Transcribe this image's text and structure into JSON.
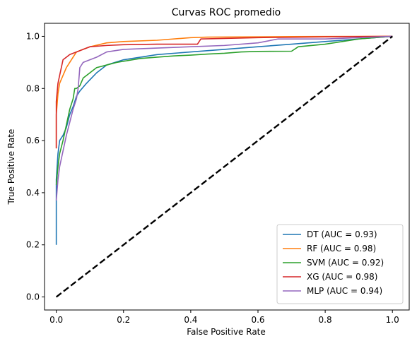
{
  "chart_data": {
    "type": "line",
    "title": "Curvas ROC promedio",
    "xlabel": "False Positive Rate",
    "ylabel": "True Positive Rate",
    "xlim": [
      -0.035,
      1.05
    ],
    "ylim": [
      -0.05,
      1.05
    ],
    "xticks": [
      0.0,
      0.2,
      0.4,
      0.6,
      0.8,
      1.0
    ],
    "yticks": [
      0.0,
      0.2,
      0.4,
      0.6,
      0.8,
      1.0
    ],
    "xtick_labels": [
      "0.0",
      "0.2",
      "0.4",
      "0.6",
      "0.8",
      "1.0"
    ],
    "ytick_labels": [
      "0.0",
      "0.2",
      "0.4",
      "0.6",
      "0.8",
      "1.0"
    ],
    "grid": false,
    "legend_position": "lower-right",
    "series": [
      {
        "name": "DT (AUC = 0.93)",
        "color": "#1f77b4",
        "x": [
          0,
          0,
          0.005,
          0.01,
          0.02,
          0.03,
          0.04,
          0.05,
          0.06,
          0.07,
          0.09,
          0.12,
          0.15,
          0.2,
          0.3,
          0.4,
          0.5,
          0.6,
          0.7,
          0.8,
          0.9,
          1.0
        ],
        "y": [
          0.2,
          0.45,
          0.55,
          0.6,
          0.62,
          0.65,
          0.7,
          0.73,
          0.77,
          0.79,
          0.82,
          0.86,
          0.89,
          0.91,
          0.93,
          0.94,
          0.95,
          0.96,
          0.97,
          0.98,
          0.99,
          1.0
        ]
      },
      {
        "name": "RF (AUC = 0.98)",
        "color": "#ff7f0e",
        "x": [
          0,
          0,
          0.005,
          0.01,
          0.02,
          0.03,
          0.04,
          0.05,
          0.06,
          0.08,
          0.1,
          0.15,
          0.2,
          0.3,
          0.4,
          0.45,
          0.6,
          0.7,
          1.0
        ],
        "y": [
          0.57,
          0.7,
          0.78,
          0.82,
          0.85,
          0.88,
          0.9,
          0.92,
          0.94,
          0.95,
          0.96,
          0.975,
          0.98,
          0.985,
          0.995,
          0.997,
          0.998,
          0.999,
          1.0
        ]
      },
      {
        "name": "SVM (AUC = 0.92)",
        "color": "#2ca02c",
        "x": [
          0,
          0.005,
          0.01,
          0.02,
          0.03,
          0.04,
          0.05,
          0.055,
          0.06,
          0.07,
          0.08,
          0.1,
          0.12,
          0.15,
          0.18,
          0.25,
          0.3,
          0.35,
          0.4,
          0.45,
          0.5,
          0.55,
          0.6,
          0.7,
          0.72,
          0.8,
          0.9,
          1.0
        ],
        "y": [
          0.43,
          0.5,
          0.55,
          0.6,
          0.66,
          0.72,
          0.76,
          0.8,
          0.8,
          0.81,
          0.84,
          0.86,
          0.88,
          0.89,
          0.9,
          0.915,
          0.92,
          0.925,
          0.928,
          0.932,
          0.935,
          0.94,
          0.942,
          0.943,
          0.96,
          0.97,
          0.99,
          1.0
        ]
      },
      {
        "name": "XG (AUC = 0.98)",
        "color": "#d62728",
        "x": [
          0,
          0,
          0.005,
          0.01,
          0.02,
          0.03,
          0.04,
          0.06,
          0.08,
          0.1,
          0.15,
          0.2,
          0.3,
          0.42,
          0.43,
          0.6,
          0.8,
          1.0
        ],
        "y": [
          0.57,
          0.75,
          0.82,
          0.85,
          0.91,
          0.92,
          0.93,
          0.94,
          0.95,
          0.96,
          0.965,
          0.968,
          0.97,
          0.97,
          0.99,
          0.995,
          0.998,
          1.0
        ]
      },
      {
        "name": "MLP (AUC = 0.94)",
        "color": "#9467bd",
        "x": [
          0,
          0.005,
          0.01,
          0.02,
          0.03,
          0.04,
          0.05,
          0.06,
          0.065,
          0.07,
          0.08,
          0.1,
          0.12,
          0.15,
          0.2,
          0.3,
          0.4,
          0.5,
          0.6,
          0.66,
          0.8,
          0.9,
          1.0
        ],
        "y": [
          0.37,
          0.45,
          0.5,
          0.56,
          0.62,
          0.67,
          0.72,
          0.76,
          0.8,
          0.88,
          0.9,
          0.91,
          0.92,
          0.94,
          0.95,
          0.955,
          0.96,
          0.965,
          0.975,
          0.99,
          0.99,
          0.995,
          1.0
        ]
      }
    ],
    "reference_line": {
      "x": [
        0,
        1
      ],
      "y": [
        0,
        1
      ],
      "color": "#000000",
      "style": "dashed"
    }
  }
}
